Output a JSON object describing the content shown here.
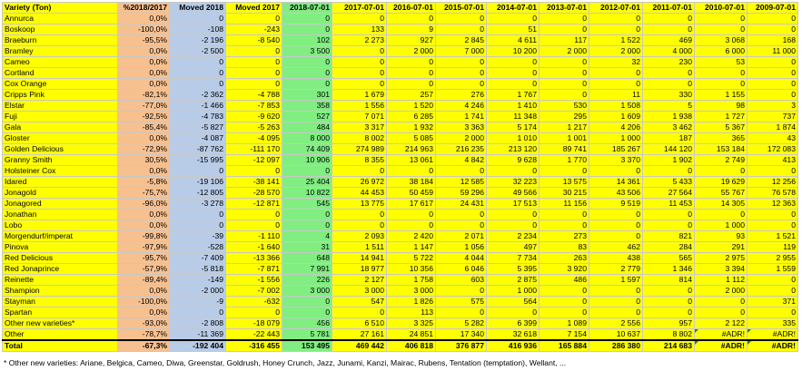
{
  "headers": [
    "Variety (Ton)",
    "%2018/2017",
    "Moved 2018",
    "Moved 2017",
    "2018-07-01",
    "2017-07-01",
    "2016-07-01",
    "2015-07-01",
    "2014-07-01",
    "2013-07-01",
    "2012-07-01",
    "2011-07-01",
    "2010-07-01",
    "2009-07-01"
  ],
  "rows": [
    [
      "Annurca",
      "0,0%",
      "0",
      "0",
      "0",
      "0",
      "0",
      "0",
      "0",
      "0",
      "0",
      "0",
      "0",
      "0"
    ],
    [
      "Boskoop",
      "-100,0%",
      "-108",
      "-243",
      "0",
      "133",
      "9",
      "0",
      "51",
      "0",
      "0",
      "0",
      "0",
      "0"
    ],
    [
      "Braeburn",
      "-95,5%",
      "-2 196",
      "-8 540",
      "102",
      "2 273",
      "927",
      "2 845",
      "4 611",
      "117",
      "1 522",
      "469",
      "3 068",
      "168"
    ],
    [
      "Bramley",
      "0,0%",
      "-2 500",
      "0",
      "3 500",
      "0",
      "2 000",
      "7 000",
      "10 200",
      "2 000",
      "2 000",
      "4 000",
      "6 000",
      "11 000"
    ],
    [
      "Cameo",
      "0,0%",
      "0",
      "0",
      "0",
      "0",
      "0",
      "0",
      "0",
      "0",
      "32",
      "230",
      "53",
      "0"
    ],
    [
      "Cortland",
      "0,0%",
      "0",
      "0",
      "0",
      "0",
      "0",
      "0",
      "0",
      "0",
      "0",
      "0",
      "0",
      "0"
    ],
    [
      "Cox Orange",
      "0,0%",
      "0",
      "0",
      "0",
      "0",
      "0",
      "0",
      "0",
      "0",
      "0",
      "0",
      "0",
      "0"
    ],
    [
      "Cripps Pink",
      "-82,1%",
      "-2 362",
      "-4 788",
      "301",
      "1 679",
      "257",
      "276",
      "1 767",
      "0",
      "11",
      "330",
      "1 155",
      "0"
    ],
    [
      "Elstar",
      "-77,0%",
      "-1 466",
      "-7 853",
      "358",
      "1 556",
      "1 520",
      "4 246",
      "1 410",
      "530",
      "1 508",
      "5",
      "98",
      "3"
    ],
    [
      "Fuji",
      "-92,5%",
      "-4 783",
      "-9 620",
      "527",
      "7 071",
      "6 285",
      "1 741",
      "11 348",
      "295",
      "1 609",
      "1 938",
      "1 727",
      "737"
    ],
    [
      "Gala",
      "-85,4%",
      "-5 827",
      "-5 263",
      "484",
      "3 317",
      "1 932",
      "3 363",
      "5 174",
      "1 217",
      "4 206",
      "3 462",
      "5 367",
      "1 874"
    ],
    [
      "Gloster",
      "0,0%",
      "-4 087",
      "-4 095",
      "8 000",
      "8 002",
      "5 085",
      "2 000",
      "1 010",
      "1 001",
      "1 000",
      "187",
      "365",
      "43"
    ],
    [
      "Golden Delicious",
      "-72,9%",
      "-87 762",
      "-111 170",
      "74 409",
      "274 989",
      "214 963",
      "216 235",
      "213 120",
      "89 741",
      "185 267",
      "144 120",
      "153 184",
      "172 083"
    ],
    [
      "Granny Smith",
      "30,5%",
      "-15 995",
      "-12 097",
      "10 906",
      "8 355",
      "13 061",
      "4 842",
      "9 628",
      "1 770",
      "3 370",
      "1 902",
      "2 749",
      "413"
    ],
    [
      "Holsteiner Cox",
      "0,0%",
      "0",
      "0",
      "0",
      "0",
      "0",
      "0",
      "0",
      "0",
      "0",
      "0",
      "0",
      "0"
    ],
    [
      "Idared",
      "-5,8%",
      "-19 106",
      "-38 141",
      "25 404",
      "26 972",
      "38 184",
      "12 585",
      "32 223",
      "13 575",
      "14 361",
      "5 433",
      "19 629",
      "12 256"
    ],
    [
      "Jonagold",
      "-75,7%",
      "-12 805",
      "-28 570",
      "10 822",
      "44 453",
      "50 459",
      "59 296",
      "49 566",
      "30 215",
      "43 506",
      "27 564",
      "55 767",
      "76 578"
    ],
    [
      "Jonagored",
      "-96,0%",
      "-3 278",
      "-12 871",
      "545",
      "13 775",
      "17 617",
      "24 431",
      "17 513",
      "11 156",
      "9 519",
      "11 453",
      "14 305",
      "12 363"
    ],
    [
      "Jonathan",
      "0,0%",
      "0",
      "0",
      "0",
      "0",
      "0",
      "0",
      "0",
      "0",
      "0",
      "0",
      "0",
      "0"
    ],
    [
      "Lobo",
      "0,0%",
      "0",
      "0",
      "0",
      "0",
      "0",
      "0",
      "0",
      "0",
      "0",
      "0",
      "1 000",
      "0"
    ],
    [
      "Morgendurf/imperat",
      "-99,8%",
      "-39",
      "-1 110",
      "4",
      "2 093",
      "2 420",
      "2 071",
      "2 234",
      "273",
      "0",
      "821",
      "93",
      "1 521"
    ],
    [
      "Pinova",
      "-97,9%",
      "-528",
      "-1 640",
      "31",
      "1 511",
      "1 147",
      "1 056",
      "497",
      "83",
      "462",
      "284",
      "291",
      "119"
    ],
    [
      "Red Delicious",
      "-95,7%",
      "-7 409",
      "-13 366",
      "648",
      "14 941",
      "5 722",
      "4 044",
      "7 734",
      "263",
      "438",
      "565",
      "2 975",
      "2 955"
    ],
    [
      "Red Jonaprince",
      "-57,9%",
      "-5 818",
      "-7 871",
      "7 991",
      "18 977",
      "10 356",
      "6 046",
      "5 395",
      "3 920",
      "2 779",
      "1 346",
      "3 394",
      "1 559"
    ],
    [
      "Reinette",
      "-89,4%",
      "-149",
      "-1 556",
      "226",
      "2 127",
      "1 758",
      "603",
      "2 875",
      "486",
      "1 597",
      "814",
      "1 112",
      "0"
    ],
    [
      "Shampion",
      "0,0%",
      "-2 000",
      "-7 002",
      "3 000",
      "3 000",
      "3 000",
      "0",
      "1 000",
      "0",
      "0",
      "0",
      "2 000",
      "0"
    ],
    [
      "Stayman",
      "-100,0%",
      "-9",
      "-632",
      "0",
      "547",
      "1 826",
      "575",
      "564",
      "0",
      "0",
      "0",
      "0",
      "371"
    ],
    [
      "Spartan",
      "0,0%",
      "0",
      "0",
      "0",
      "0",
      "113",
      "0",
      "0",
      "0",
      "0",
      "0",
      "0",
      "0"
    ],
    [
      "Other new varieties*",
      "-93,0%",
      "-2 808",
      "-18 079",
      "456",
      "6 510",
      "3 325",
      "5 282",
      "6 399",
      "1 089",
      "2 556",
      "957",
      "2 122",
      "335"
    ],
    [
      "Other",
      "-78,7%",
      "-11 369",
      "-22 443",
      "5 781",
      "27 161",
      "24 851",
      "17 340",
      "32 618",
      "7 154",
      "10 637",
      "8 802",
      "#ADR!",
      "#ADR!"
    ]
  ],
  "total": [
    "Total",
    "-67,3%",
    "-192 404",
    "-316 455",
    "153 495",
    "469 442",
    "406 818",
    "376 877",
    "416 936",
    "165 884",
    "286 380",
    "214 683",
    "#ADR!",
    "#ADR!"
  ],
  "footnote": "* Other new varieties: Ariane, Belgica, Cameo, Diwa, Greenstar, Goldrush, Honey Crunch, Jazz, Junami, Kanzi, Mairac, Rubens, Tentation (temptation), Wellant, ...",
  "colors": {
    "cell_background": "#ffff00",
    "percent_column": "#f7c08f",
    "moved_2018_column": "#b8cce8",
    "column_2018": "#80ee80",
    "gridline": "#c8c8c8",
    "error_marker": "#1a8a1a"
  }
}
